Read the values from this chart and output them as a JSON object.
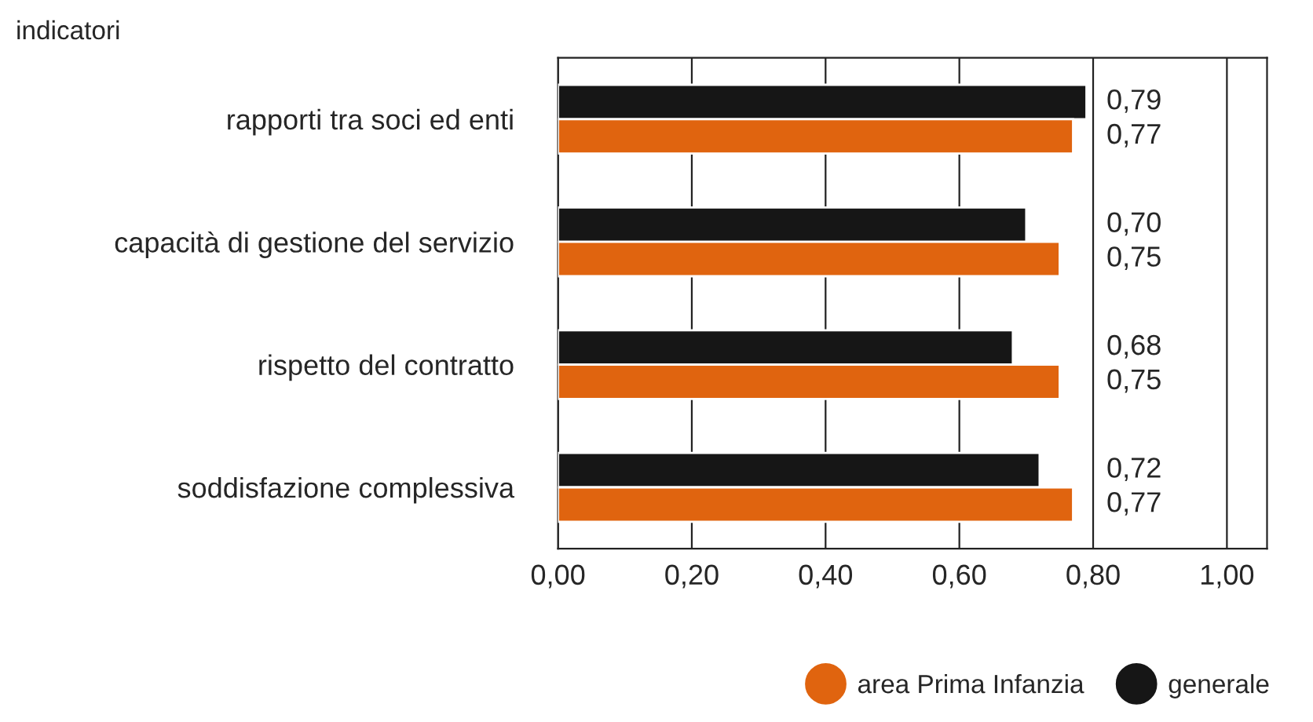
{
  "chart_data": {
    "type": "bar",
    "orientation": "horizontal",
    "ylabel": "indicatori",
    "categories": [
      "rapporti tra soci ed enti",
      "capacità di gestione del servizio",
      "rispetto del contratto",
      "soddisfazione complessiva"
    ],
    "series": [
      {
        "name": "generale",
        "color": "#161616",
        "values": [
          0.79,
          0.7,
          0.68,
          0.72
        ],
        "value_labels": [
          "0,79",
          "0,70",
          "0,68",
          "0,72"
        ]
      },
      {
        "name": "area Prima Infanzia",
        "color": "#e0640f",
        "values": [
          0.77,
          0.75,
          0.75,
          0.77
        ],
        "value_labels": [
          "0,77",
          "0,75",
          "0,75",
          "0,77"
        ]
      }
    ],
    "xlim": [
      0,
      1.06
    ],
    "xticks": [
      {
        "value": 0,
        "label": "0,00"
      },
      {
        "value": 0.2,
        "label": "0,20"
      },
      {
        "value": 0.4,
        "label": "0,40"
      },
      {
        "value": 0.6,
        "label": "0,60"
      },
      {
        "value": 0.8,
        "label": "0,80"
      },
      {
        "value": 1.0,
        "label": "1,00"
      }
    ],
    "grid": "x",
    "legend": "bottom"
  }
}
